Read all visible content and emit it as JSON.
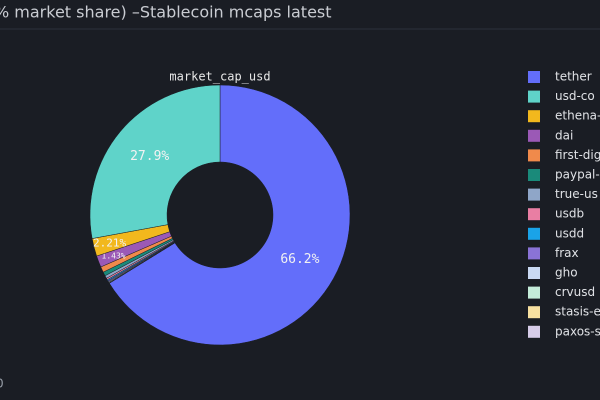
{
  "chart_data": {
    "type": "donut",
    "title": "% market share) –Stablecoin mcaps latest",
    "subtitle": "market_cap_usd",
    "categories": [
      "tether",
      "usd-co",
      "ethena-",
      "dai",
      "first-dig",
      "paypal-",
      "true-us",
      "usdb",
      "usdd",
      "frax",
      "gho",
      "crvusd",
      "stasis-e",
      "paxos-s"
    ],
    "values": [
      66.2,
      27.9,
      2.21,
      1.43,
      0.7,
      0.5,
      0.35,
      0.2,
      0.15,
      0.12,
      0.1,
      0.08,
      0.04,
      0.02
    ],
    "value_labels": [
      "66.2%",
      "27.9%",
      "2.21%",
      "1.43%",
      null,
      null,
      null,
      null,
      null,
      null,
      null,
      null,
      null,
      null
    ],
    "colors": [
      "#636efa",
      "#5fd3c9",
      "#f2b81d",
      "#9b59b6",
      "#f08a4b",
      "#1a8a7a",
      "#8fa6c8",
      "#e97ea3",
      "#1aa3e8",
      "#8a73d6",
      "#c9d9f2",
      "#c4ecd9",
      "#f7e0a0",
      "#d6cce8"
    ],
    "legend": "right"
  },
  "footer": "0"
}
